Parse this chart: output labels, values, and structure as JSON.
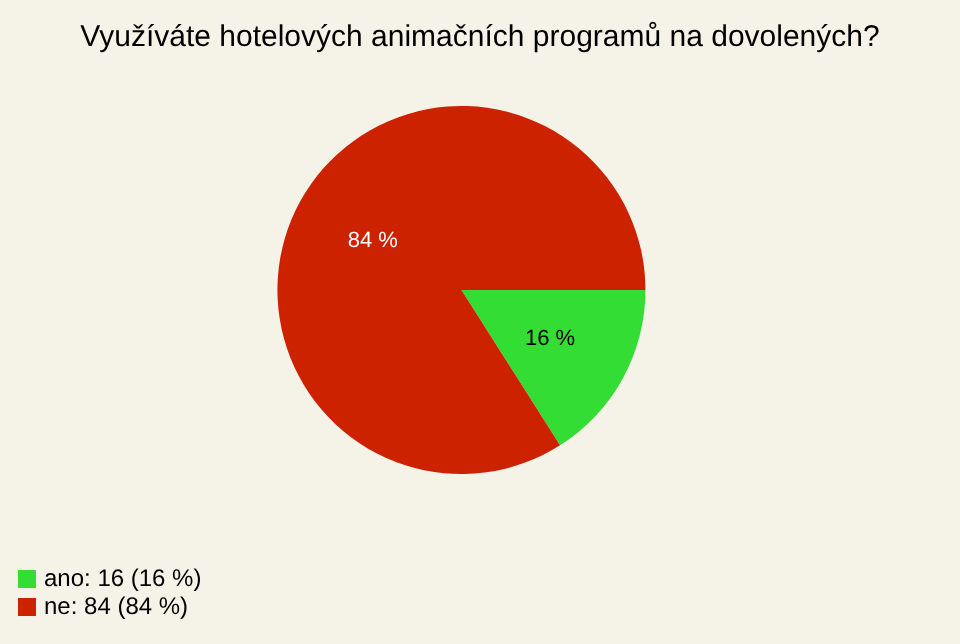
{
  "chart_data": {
    "type": "pie",
    "title": "Využíváte hotelových animačních programů na dovolených?",
    "categories": [
      "ano: 16 (16 %)",
      "ne: 84 (84 %)"
    ],
    "values": [
      16,
      84
    ],
    "colors": [
      "#33dd33",
      "#cc2200"
    ],
    "value_labels": [
      "16 %",
      "84 %"
    ],
    "legend": "bottom left"
  }
}
